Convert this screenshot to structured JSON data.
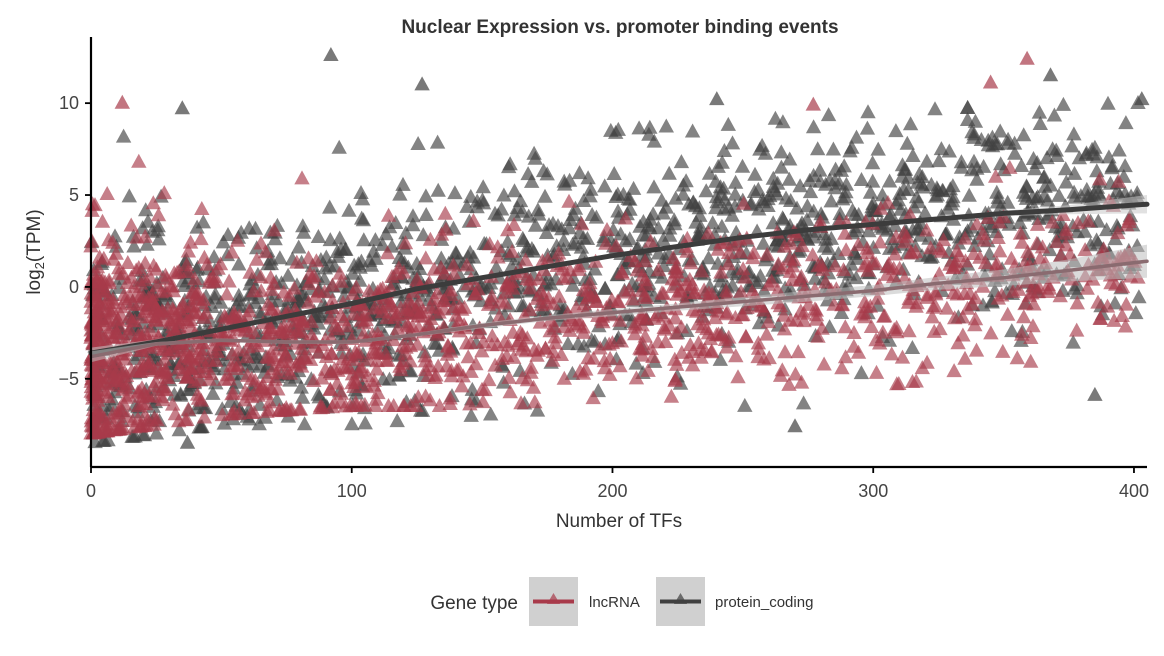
{
  "chart_data": {
    "type": "scatter",
    "title": "Nuclear Expression vs. promoter binding events",
    "xlabel": "Number of TFs",
    "ylabel_main": "log",
    "ylabel_sub": "2",
    "ylabel_rest": "(TPM)",
    "xlim": [
      0,
      405
    ],
    "ylim": [
      -9.8,
      13.6
    ],
    "x_ticks": [
      0,
      100,
      200,
      300,
      400
    ],
    "y_ticks": [
      10,
      5,
      0,
      -5
    ],
    "x_tick_labels": [
      "0",
      "100",
      "200",
      "300",
      "400"
    ],
    "y_tick_labels": [
      "10",
      "5",
      "0",
      "−5"
    ],
    "grid": false,
    "marker": "triangle",
    "legend": {
      "title": "Gene type",
      "position": "bottom",
      "entries": [
        {
          "label": "lncRNA",
          "color": "#a83a4a"
        },
        {
          "label": "protein_coding",
          "color": "#404040"
        }
      ]
    },
    "series": [
      {
        "name": "protein_coding",
        "color": "#404040",
        "trend": {
          "x": [
            0,
            25,
            50,
            75,
            100,
            125,
            150,
            175,
            200,
            225,
            250,
            275,
            300,
            325,
            350,
            375,
            405
          ],
          "y": [
            -3.6,
            -3.0,
            -2.3,
            -1.6,
            -0.9,
            -0.1,
            0.5,
            1.1,
            1.7,
            2.2,
            2.7,
            3.1,
            3.4,
            3.7,
            4.0,
            4.2,
            4.5
          ]
        },
        "band_halfwidth": [
          0.3,
          0.15,
          0.1,
          0.1,
          0.1,
          0.1,
          0.1,
          0.1,
          0.1,
          0.1,
          0.1,
          0.1,
          0.1,
          0.1,
          0.15,
          0.25,
          0.5
        ],
        "spread": {
          "x": [
            0,
            50,
            100,
            150,
            200,
            250,
            300,
            350,
            405
          ],
          "y_low": [
            -8.5,
            -7.5,
            -7.5,
            -7.0,
            -6.5,
            -6.5,
            -6.2,
            -4.5,
            -4.5
          ],
          "y_high": [
            9.5,
            8.0,
            7.5,
            8.0,
            8.5,
            9.0,
            9.5,
            9.8,
            10.0
          ]
        }
      },
      {
        "name": "lncRNA",
        "color": "#a83a4a",
        "trend": {
          "x": [
            0,
            25,
            50,
            75,
            100,
            125,
            150,
            175,
            200,
            225,
            250,
            275,
            300,
            325,
            350,
            375,
            405
          ],
          "y": [
            -3.8,
            -3.1,
            -2.9,
            -3.0,
            -3.0,
            -2.6,
            -2.1,
            -1.7,
            -1.4,
            -1.1,
            -0.8,
            -0.5,
            -0.2,
            0.2,
            0.5,
            0.9,
            1.4
          ]
        },
        "band_halfwidth": [
          0.3,
          0.1,
          0.1,
          0.1,
          0.1,
          0.1,
          0.15,
          0.15,
          0.2,
          0.2,
          0.25,
          0.3,
          0.3,
          0.35,
          0.45,
          0.6,
          0.9
        ],
        "spread": {
          "x": [
            0,
            50,
            100,
            150,
            200,
            250,
            300,
            350,
            405
          ],
          "y_low": [
            -8.0,
            -7.0,
            -6.5,
            -6.5,
            -6.0,
            -6.0,
            -5.5,
            -4.5,
            -3.5
          ],
          "y_high": [
            10.0,
            6.5,
            5.5,
            5.5,
            5.0,
            5.5,
            6.0,
            6.5,
            5.5
          ]
        }
      }
    ],
    "outliers": [
      {
        "series": "protein_coding",
        "x": 92,
        "y": 12.6
      },
      {
        "series": "protein_coding",
        "x": 127,
        "y": 11.0
      },
      {
        "series": "protein_coding",
        "x": 368,
        "y": 11.5
      },
      {
        "series": "protein_coding",
        "x": 403,
        "y": 10.2
      },
      {
        "series": "protein_coding",
        "x": 35,
        "y": 9.7
      },
      {
        "series": "protein_coding",
        "x": 240,
        "y": 10.2
      },
      {
        "series": "lncRNA",
        "x": 359,
        "y": 12.4
      },
      {
        "series": "lncRNA",
        "x": 345,
        "y": 11.1
      },
      {
        "series": "lncRNA",
        "x": 12,
        "y": 10.0
      },
      {
        "series": "lncRNA",
        "x": 277,
        "y": 9.9
      },
      {
        "series": "protein_coding",
        "x": 37,
        "y": -8.5
      },
      {
        "series": "protein_coding",
        "x": 270,
        "y": -7.6
      },
      {
        "series": "protein_coding",
        "x": 385,
        "y": -5.9
      }
    ]
  }
}
